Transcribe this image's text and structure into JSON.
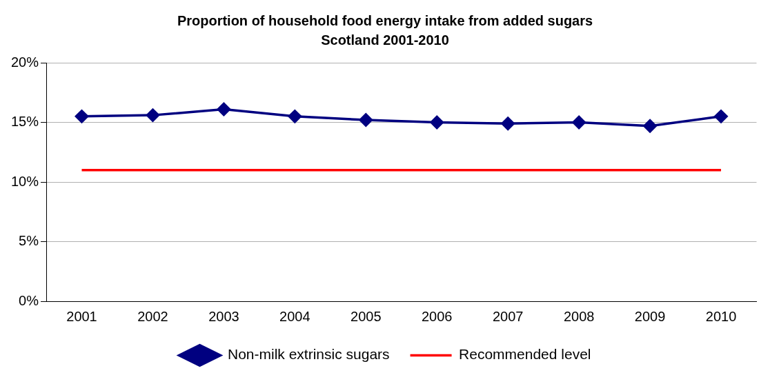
{
  "chart_data": {
    "type": "line",
    "title": "Proportion of household food energy intake from added sugars",
    "subtitle": "Scotland 2001-2010",
    "categories": [
      "2001",
      "2002",
      "2003",
      "2004",
      "2005",
      "2006",
      "2007",
      "2008",
      "2009",
      "2010"
    ],
    "series": [
      {
        "name": "Non-milk extrinsic sugars",
        "color": "#000080",
        "marker": "diamond",
        "values": [
          15.5,
          15.6,
          16.1,
          15.5,
          15.2,
          15.0,
          14.9,
          15.0,
          14.7,
          15.5
        ]
      },
      {
        "name": "Recommended level",
        "color": "#ff0000",
        "marker": "none",
        "values": [
          11,
          11,
          11,
          11,
          11,
          11,
          11,
          11,
          11,
          11
        ]
      }
    ],
    "ylim": [
      0,
      20
    ],
    "yticks": [
      {
        "value": 0,
        "label": "0%"
      },
      {
        "value": 5,
        "label": "5%"
      },
      {
        "value": 10,
        "label": "10%"
      },
      {
        "value": 15,
        "label": "15%"
      },
      {
        "value": 20,
        "label": "20%"
      }
    ],
    "grid": "y",
    "legend": "bottom"
  }
}
